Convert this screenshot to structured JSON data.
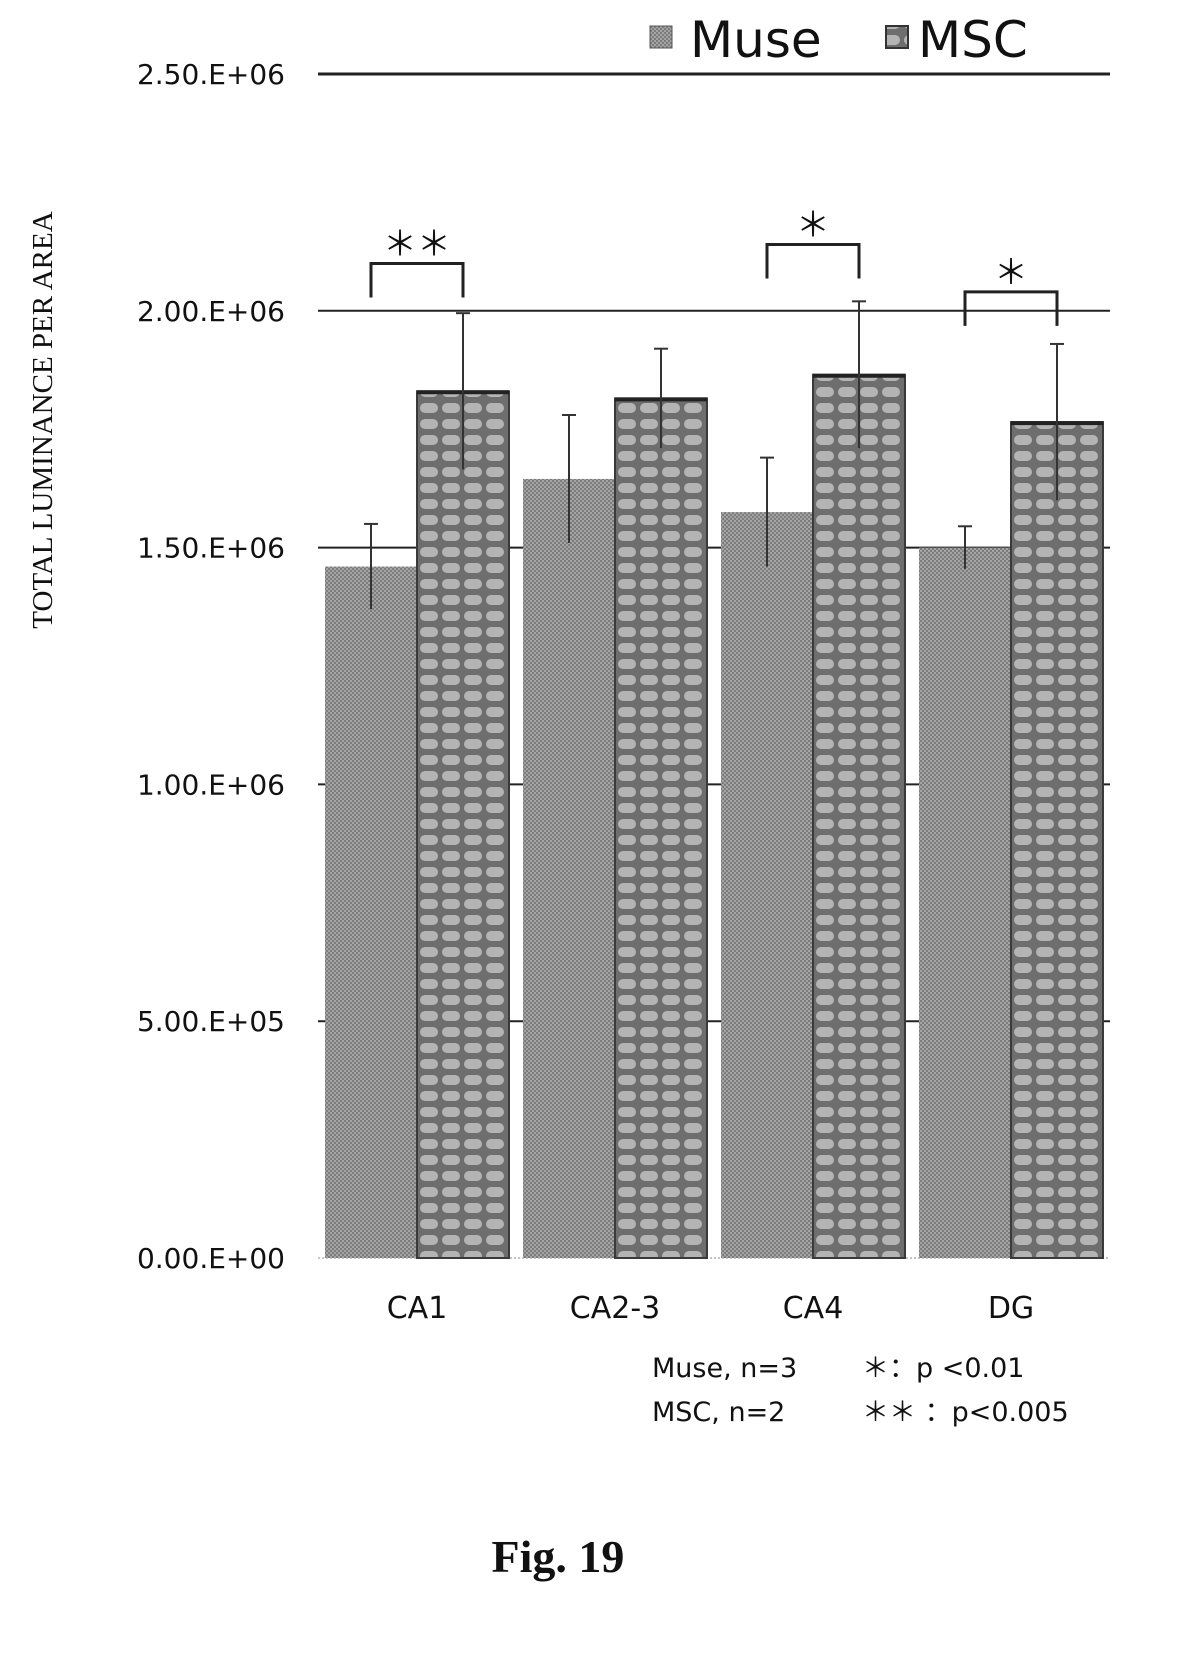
{
  "chart_data": {
    "type": "bar",
    "ylabel": "TOTAL LUMINANCE PER AREA",
    "xlabel": "",
    "ylim": [
      0,
      2500000
    ],
    "yticks": [
      {
        "value": 0,
        "label": "0.00.E+00"
      },
      {
        "value": 500000,
        "label": "5.00.E+05"
      },
      {
        "value": 1000000,
        "label": "1.00.E+06"
      },
      {
        "value": 1500000,
        "label": "1.50.E+06"
      },
      {
        "value": 2000000,
        "label": "2.00.E+06"
      },
      {
        "value": 2500000,
        "label": "2.50.E+06"
      }
    ],
    "categories": [
      "CA1",
      "CA2-3",
      "CA4",
      "DG"
    ],
    "series": [
      {
        "name": "Muse",
        "values": [
          1460000,
          1645000,
          1575000,
          1500000
        ],
        "errors": [
          90000,
          135000,
          115000,
          45000
        ],
        "color": "#9a9a9a"
      },
      {
        "name": "MSC",
        "values": [
          1830000,
          1815000,
          1865000,
          1765000
        ],
        "errors": [
          165000,
          105000,
          155000,
          165000
        ],
        "color": "#8c8c8c"
      }
    ],
    "legend_position": "top-right",
    "grid": "horizontal",
    "significance": [
      {
        "category": "CA1",
        "label": "＊＊",
        "bracket_top": 2100000
      },
      {
        "category": "CA4",
        "label": "＊",
        "bracket_top": 2140000
      },
      {
        "category": "DG",
        "label": "＊",
        "bracket_top": 2040000
      }
    ]
  },
  "notes": {
    "muse_n": "Muse, n=3",
    "msc_n": "MSC, n=2",
    "p1": "＊：p <0.01",
    "p2": "＊＊ ：p<0.005"
  },
  "caption": "Fig. 19"
}
